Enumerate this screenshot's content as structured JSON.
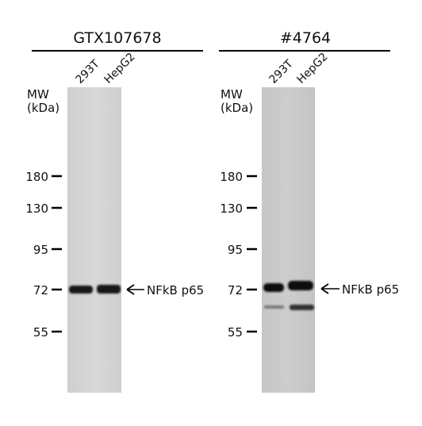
{
  "panels": [
    {
      "title": "GTX107678",
      "lanes": [
        "293T",
        "HepG2"
      ],
      "mw_label": [
        "MW",
        "(kDa)"
      ],
      "markers": [
        180,
        130,
        95,
        72,
        55
      ],
      "band_label": "NFkB p65"
    },
    {
      "title": "#4764",
      "lanes": [
        "293T",
        "HepG2"
      ],
      "mw_label": [
        "MW",
        "(kDa)"
      ],
      "markers": [
        180,
        130,
        95,
        72,
        55
      ],
      "band_label": "NFkB p65"
    }
  ]
}
